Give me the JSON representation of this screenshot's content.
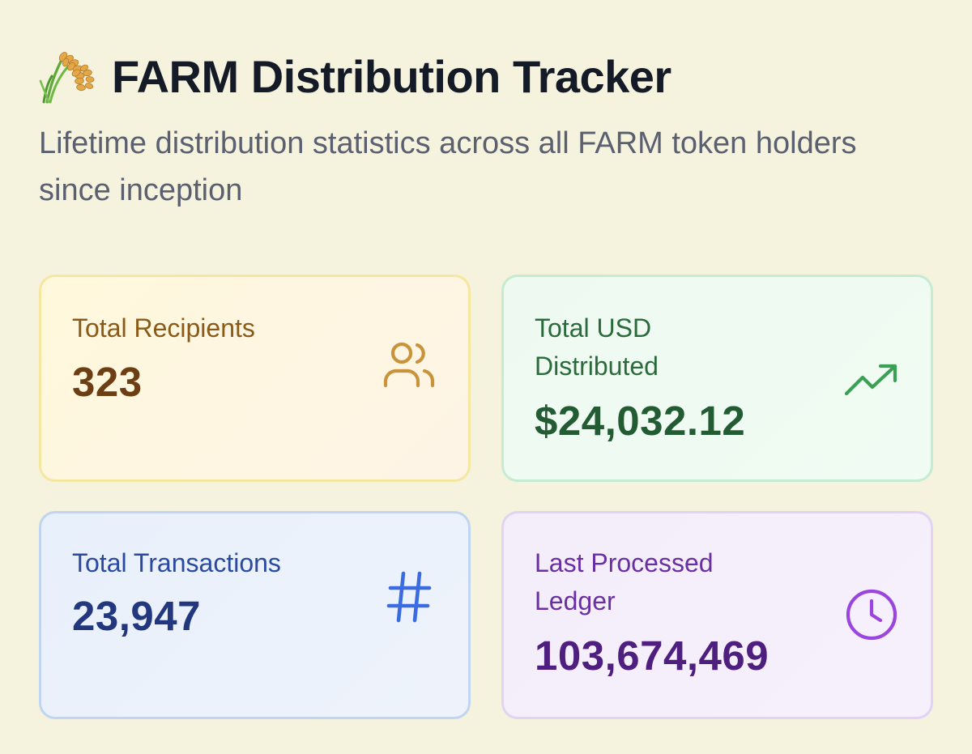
{
  "header": {
    "icon": "rice-sheaf-icon",
    "title": "FARM Distribution Tracker",
    "subtitle": "Lifetime distribution statistics across all FARM token holders since inception"
  },
  "stats": {
    "recipients": {
      "label": "Total Recipients",
      "value": "323",
      "icon": "users-icon",
      "color": "#c8933a"
    },
    "usd": {
      "label": "Total USD Distributed",
      "value": "$24,032.12",
      "icon": "trending-up-icon",
      "color": "#3aa055"
    },
    "transactions": {
      "label": "Total Transactions",
      "value": "23,947",
      "icon": "hash-icon",
      "color": "#3b6be0"
    },
    "ledger": {
      "label": "Last Processed Ledger",
      "value": "103,674,469",
      "icon": "clock-icon",
      "color": "#9b45e0"
    }
  }
}
